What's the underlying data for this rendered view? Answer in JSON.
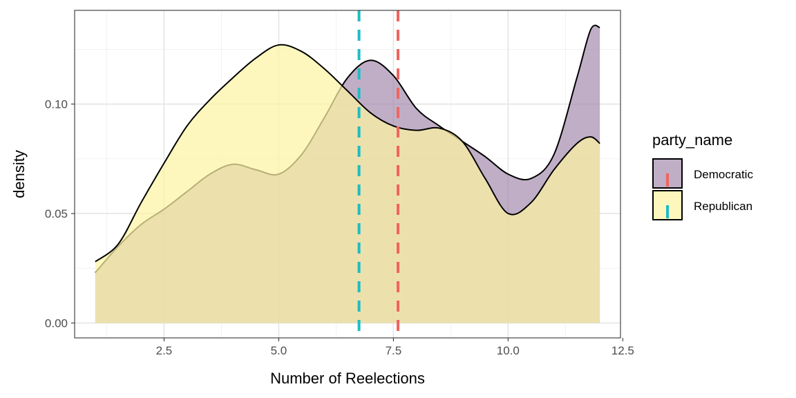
{
  "chart_data": {
    "type": "area",
    "subtype": "density",
    "xlabel": "Number of Reelections",
    "ylabel": "density",
    "xlim": [
      0.55,
      12.45
    ],
    "ylim": [
      -0.0068,
      0.1428
    ],
    "x_ticks": [
      2.5,
      5.0,
      7.5,
      10.0,
      12.5
    ],
    "x_tick_labels": [
      "2.5",
      "5.0",
      "7.5",
      "10.0",
      "12.5"
    ],
    "y_ticks": [
      0.0,
      0.05,
      0.1
    ],
    "y_tick_labels": [
      "0.00",
      "0.05",
      "0.10"
    ],
    "grid": true,
    "legend": {
      "title": "party_name",
      "position": "right",
      "entries": [
        "Democratic",
        "Republican"
      ]
    },
    "series": [
      {
        "name": "Democratic",
        "fill": "#9e82a8",
        "fill_opacity": 0.65,
        "mean_line": {
          "x": 7.6,
          "color": "#f0645f"
        },
        "points": [
          [
            1.0,
            0.023
          ],
          [
            1.5,
            0.035
          ],
          [
            2.0,
            0.045
          ],
          [
            2.5,
            0.052
          ],
          [
            3.0,
            0.06
          ],
          [
            3.5,
            0.068
          ],
          [
            4.0,
            0.0725
          ],
          [
            4.5,
            0.07
          ],
          [
            5.0,
            0.068
          ],
          [
            5.5,
            0.077
          ],
          [
            6.0,
            0.094
          ],
          [
            6.5,
            0.112
          ],
          [
            7.0,
            0.12
          ],
          [
            7.5,
            0.113
          ],
          [
            8.0,
            0.098
          ],
          [
            8.5,
            0.09
          ],
          [
            9.0,
            0.083
          ],
          [
            9.5,
            0.076
          ],
          [
            10.0,
            0.068
          ],
          [
            10.5,
            0.066
          ],
          [
            11.0,
            0.077
          ],
          [
            11.5,
            0.112
          ],
          [
            11.8,
            0.134
          ],
          [
            12.0,
            0.135
          ]
        ]
      },
      {
        "name": "Republican",
        "fill": "#fcf4a3",
        "fill_opacity": 0.72,
        "mean_line": {
          "x": 6.75,
          "color": "#1ebcc4"
        },
        "points": [
          [
            1.0,
            0.028
          ],
          [
            1.5,
            0.036
          ],
          [
            2.0,
            0.055
          ],
          [
            2.5,
            0.073
          ],
          [
            3.0,
            0.09
          ],
          [
            3.5,
            0.102
          ],
          [
            4.0,
            0.112
          ],
          [
            4.5,
            0.121
          ],
          [
            5.0,
            0.127
          ],
          [
            5.5,
            0.124
          ],
          [
            6.0,
            0.116
          ],
          [
            6.5,
            0.106
          ],
          [
            7.0,
            0.096
          ],
          [
            7.5,
            0.09
          ],
          [
            8.0,
            0.088
          ],
          [
            8.5,
            0.089
          ],
          [
            9.0,
            0.083
          ],
          [
            9.5,
            0.066
          ],
          [
            10.0,
            0.05
          ],
          [
            10.5,
            0.055
          ],
          [
            11.0,
            0.07
          ],
          [
            11.5,
            0.082
          ],
          [
            11.8,
            0.085
          ],
          [
            12.0,
            0.082
          ]
        ]
      }
    ]
  }
}
